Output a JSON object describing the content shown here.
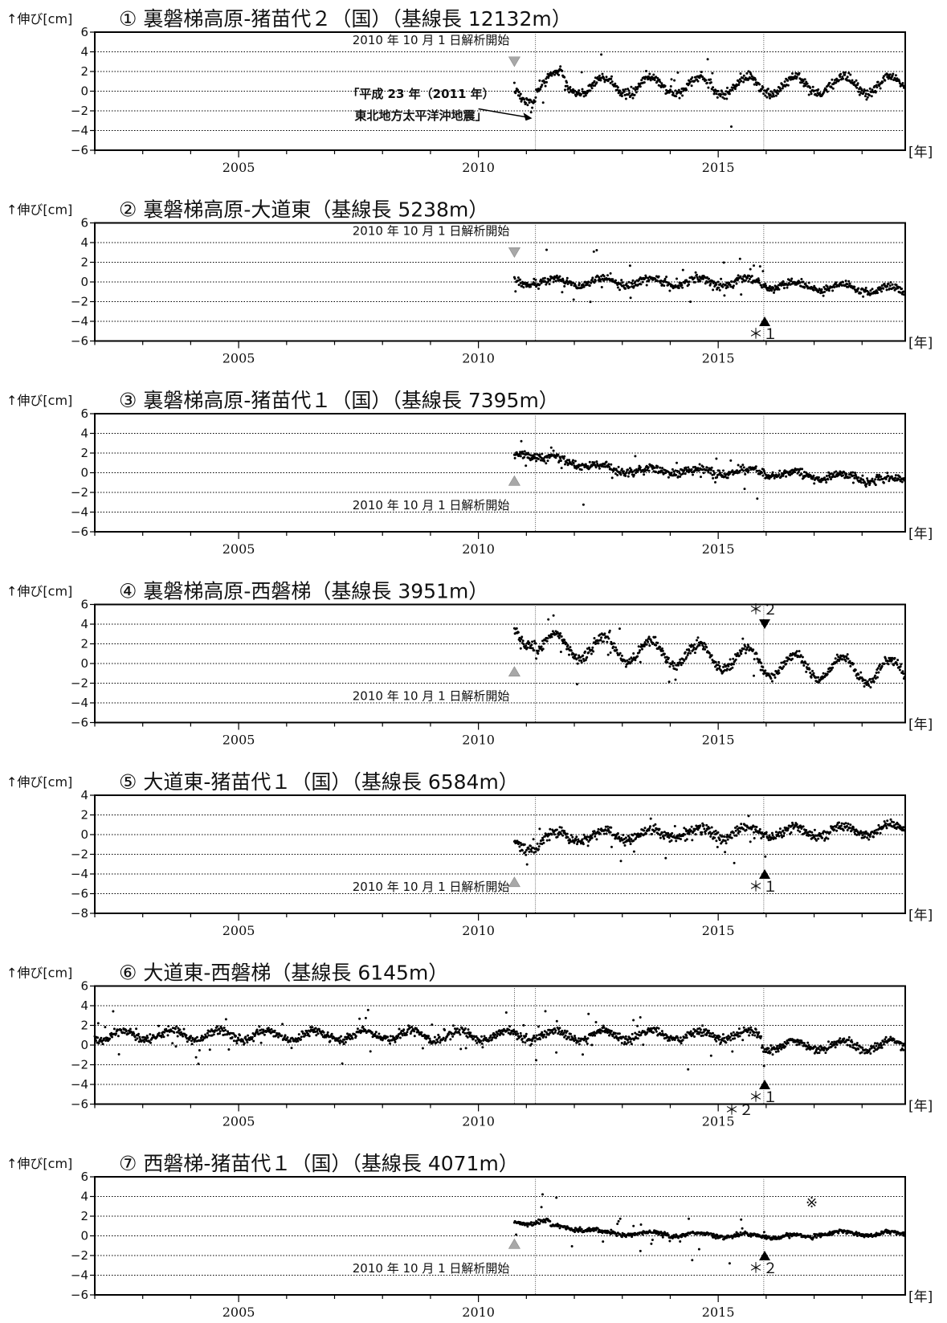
{
  "y_label": "↑伸び[cm]",
  "x_unit": "[年]",
  "marker_ref": "※",
  "colors": {
    "points": "#000000",
    "start_marker": "#a8a8a8",
    "event_marker": "#000000",
    "grid": "#000000"
  },
  "chart_data": [
    {
      "type": "scatter",
      "title": "① 裏磐梯高原-猪苗代２（国）（基線長 12132m）",
      "ylabel": "↑伸び[cm]",
      "xlabel": "[年]",
      "xlim": [
        2002.0,
        2018.9
      ],
      "ylim": [
        -6,
        6
      ],
      "yticks": [
        -6,
        -4,
        -2,
        0,
        2,
        4,
        6
      ],
      "xticks": [
        2005,
        2010,
        2015
      ],
      "grid": true,
      "event_lines": [
        2011.19,
        2015.95
      ],
      "analysis_start": {
        "x": 2010.75,
        "label": "2010 年 10 月 1 日解析開始",
        "marker": "down",
        "marker_y": 3.0
      },
      "series_model": {
        "start": 2010.75,
        "segments": [
          [
            2010.75,
            2011.2,
            -0.4,
            -0.2
          ],
          [
            2011.2,
            2011.8,
            0.6,
            1.4
          ],
          [
            2011.8,
            2018.9,
            0.5,
            0.6
          ]
        ],
        "amplitude": 0.9,
        "noise": 0.35
      },
      "annotation": {
        "line1": "「平成 23 年（2011 年）",
        "line2": "東北地方太平洋沖地震」"
      }
    },
    {
      "type": "scatter",
      "title": "② 裏磐梯高原-大道東（基線長 5238m）",
      "ylabel": "↑伸び[cm]",
      "xlabel": "[年]",
      "xlim": [
        2002.0,
        2018.9
      ],
      "ylim": [
        -6,
        6
      ],
      "yticks": [
        -6,
        -4,
        -2,
        0,
        2,
        4,
        6
      ],
      "xticks": [
        2005,
        2010,
        2015
      ],
      "grid": true,
      "event_lines": [
        2011.19,
        2015.95
      ],
      "analysis_start": {
        "x": 2010.75,
        "label": "2010 年 10 月 1 日解析開始",
        "marker": "down",
        "marker_y": 3.0
      },
      "series_model": {
        "start": 2010.75,
        "segments": [
          [
            2010.75,
            2015.9,
            0.0,
            0.0
          ],
          [
            2015.9,
            2018.9,
            -0.2,
            -0.9
          ]
        ],
        "amplitude": 0.4,
        "noise": 0.3
      },
      "event": {
        "x": 2015.5,
        "marker": "up",
        "marker_y": -4.0,
        "label": "＊１"
      }
    },
    {
      "type": "scatter",
      "title": "③ 裏磐梯高原-猪苗代１（国）（基線長 7395m）",
      "ylabel": "↑伸び[cm]",
      "xlabel": "[年]",
      "xlim": [
        2002.0,
        2018.9
      ],
      "ylim": [
        -6,
        6
      ],
      "yticks": [
        -6,
        -4,
        -2,
        0,
        2,
        4,
        6
      ],
      "xticks": [
        2005,
        2010,
        2015
      ],
      "grid": true,
      "event_lines": [
        2011.19,
        2015.95
      ],
      "analysis_start": {
        "x": 2010.75,
        "label": "2010 年 10 月 1 日解析開始",
        "marker": "up",
        "marker_y": -0.8
      },
      "series_model": {
        "start": 2010.75,
        "segments": [
          [
            2010.75,
            2011.2,
            1.8,
            2.0
          ],
          [
            2011.2,
            2012.8,
            1.7,
            0.3
          ],
          [
            2012.8,
            2015.9,
            0.3,
            0.0
          ],
          [
            2015.9,
            2018.9,
            0.0,
            -0.8
          ]
        ],
        "amplitude": 0.3,
        "noise": 0.3
      }
    },
    {
      "type": "scatter",
      "title": "④ 裏磐梯高原-西磐梯（基線長 3951m）",
      "ylabel": "↑伸び[cm]",
      "xlabel": "[年]",
      "xlim": [
        2002.0,
        2018.9
      ],
      "ylim": [
        -6,
        6
      ],
      "yticks": [
        -6,
        -4,
        -2,
        0,
        2,
        4,
        6
      ],
      "xticks": [
        2005,
        2010,
        2015
      ],
      "grid": true,
      "event_lines": [
        2011.19,
        2015.95
      ],
      "analysis_start": {
        "x": 2010.75,
        "label": "2010 年 10 月 1 日解析開始",
        "marker": "up",
        "marker_y": -0.8
      },
      "series_model": {
        "start": 2010.75,
        "segments": [
          [
            2010.75,
            2011.2,
            2.8,
            3.0
          ],
          [
            2011.2,
            2015.9,
            2.0,
            0.3
          ],
          [
            2015.9,
            2018.9,
            0.0,
            -1.0
          ]
        ],
        "amplitude": 1.2,
        "noise": 0.35
      },
      "event": {
        "x": 2015.5,
        "marker": "down",
        "marker_y": 4.0,
        "label": "＊２"
      }
    },
    {
      "type": "scatter",
      "title": "⑤ 大道東-猪苗代１（国）（基線長 6584m）",
      "ylabel": "↑伸び[cm]",
      "xlabel": "[年]",
      "xlim": [
        2002.0,
        2018.9
      ],
      "ylim": [
        -8,
        4
      ],
      "yticks": [
        -8,
        -6,
        -4,
        -2,
        0,
        2,
        4
      ],
      "xticks": [
        2005,
        2010,
        2015
      ],
      "grid": true,
      "event_lines": [
        2011.19,
        2015.95
      ],
      "analysis_start": {
        "x": 2010.75,
        "label": "2010 年 10 月 1 日解析開始",
        "marker": "up",
        "marker_y": -4.8
      },
      "series_model": {
        "start": 2010.75,
        "segments": [
          [
            2010.75,
            2011.2,
            -1.0,
            -1.2
          ],
          [
            2011.2,
            2011.8,
            -0.8,
            0.0
          ],
          [
            2011.8,
            2015.9,
            -0.2,
            0.3
          ],
          [
            2015.9,
            2018.9,
            0.2,
            0.5
          ]
        ],
        "amplitude": 0.5,
        "noise": 0.35
      },
      "event": {
        "x": 2015.5,
        "marker": "up",
        "marker_y": -4.0,
        "label": "＊１"
      }
    },
    {
      "type": "scatter",
      "title": "⑥ 大道東-西磐梯（基線長 6145m）",
      "ylabel": "↑伸び[cm]",
      "xlabel": "[年]",
      "xlim": [
        2002.0,
        2018.9
      ],
      "ylim": [
        -6,
        6
      ],
      "yticks": [
        -6,
        -4,
        -2,
        0,
        2,
        4,
        6
      ],
      "xticks": [
        2005,
        2010,
        2015
      ],
      "grid": true,
      "event_lines": [
        2010.75,
        2011.19,
        2015.95
      ],
      "series_model": {
        "start": 2002.0,
        "segments": [
          [
            2002.0,
            2015.9,
            1.0,
            1.0
          ],
          [
            2015.9,
            2018.9,
            0.0,
            -0.1
          ]
        ],
        "amplitude": 0.5,
        "noise": 0.3
      },
      "event": {
        "x": 2015.5,
        "marker": "up",
        "marker_y": -4.0,
        "label": "＊１",
        "label2": "＊２"
      }
    },
    {
      "type": "scatter",
      "title": "⑦ 西磐梯-猪苗代１（国）（基線長 4071m）",
      "ylabel": "↑伸び[cm]",
      "xlabel": "[年]",
      "xlim": [
        2002.0,
        2018.9
      ],
      "ylim": [
        -6,
        6
      ],
      "yticks": [
        -6,
        -4,
        -2,
        0,
        2,
        4,
        6
      ],
      "xticks": [
        2005,
        2010,
        2015
      ],
      "grid": true,
      "event_lines": [
        2011.19,
        2015.95
      ],
      "analysis_start": {
        "x": 2010.75,
        "label": "2010 年 10 月 1 日解析開始",
        "marker": "up",
        "marker_y": -0.8
      },
      "series_model": {
        "start": 2010.75,
        "segments": [
          [
            2010.75,
            2011.5,
            1.3,
            1.5
          ],
          [
            2011.5,
            2012.5,
            0.9,
            0.6
          ],
          [
            2012.5,
            2017.0,
            0.3,
            -0.1
          ],
          [
            2017.0,
            2018.9,
            0.3,
            0.2
          ]
        ],
        "amplitude": 0.2,
        "noise": 0.15
      },
      "event": {
        "x": 2015.5,
        "marker": "up",
        "marker_y": -2.0,
        "label": "＊２"
      },
      "ref_mark": {
        "x": 2016.95,
        "y": 2.9,
        "label": "※"
      }
    }
  ]
}
